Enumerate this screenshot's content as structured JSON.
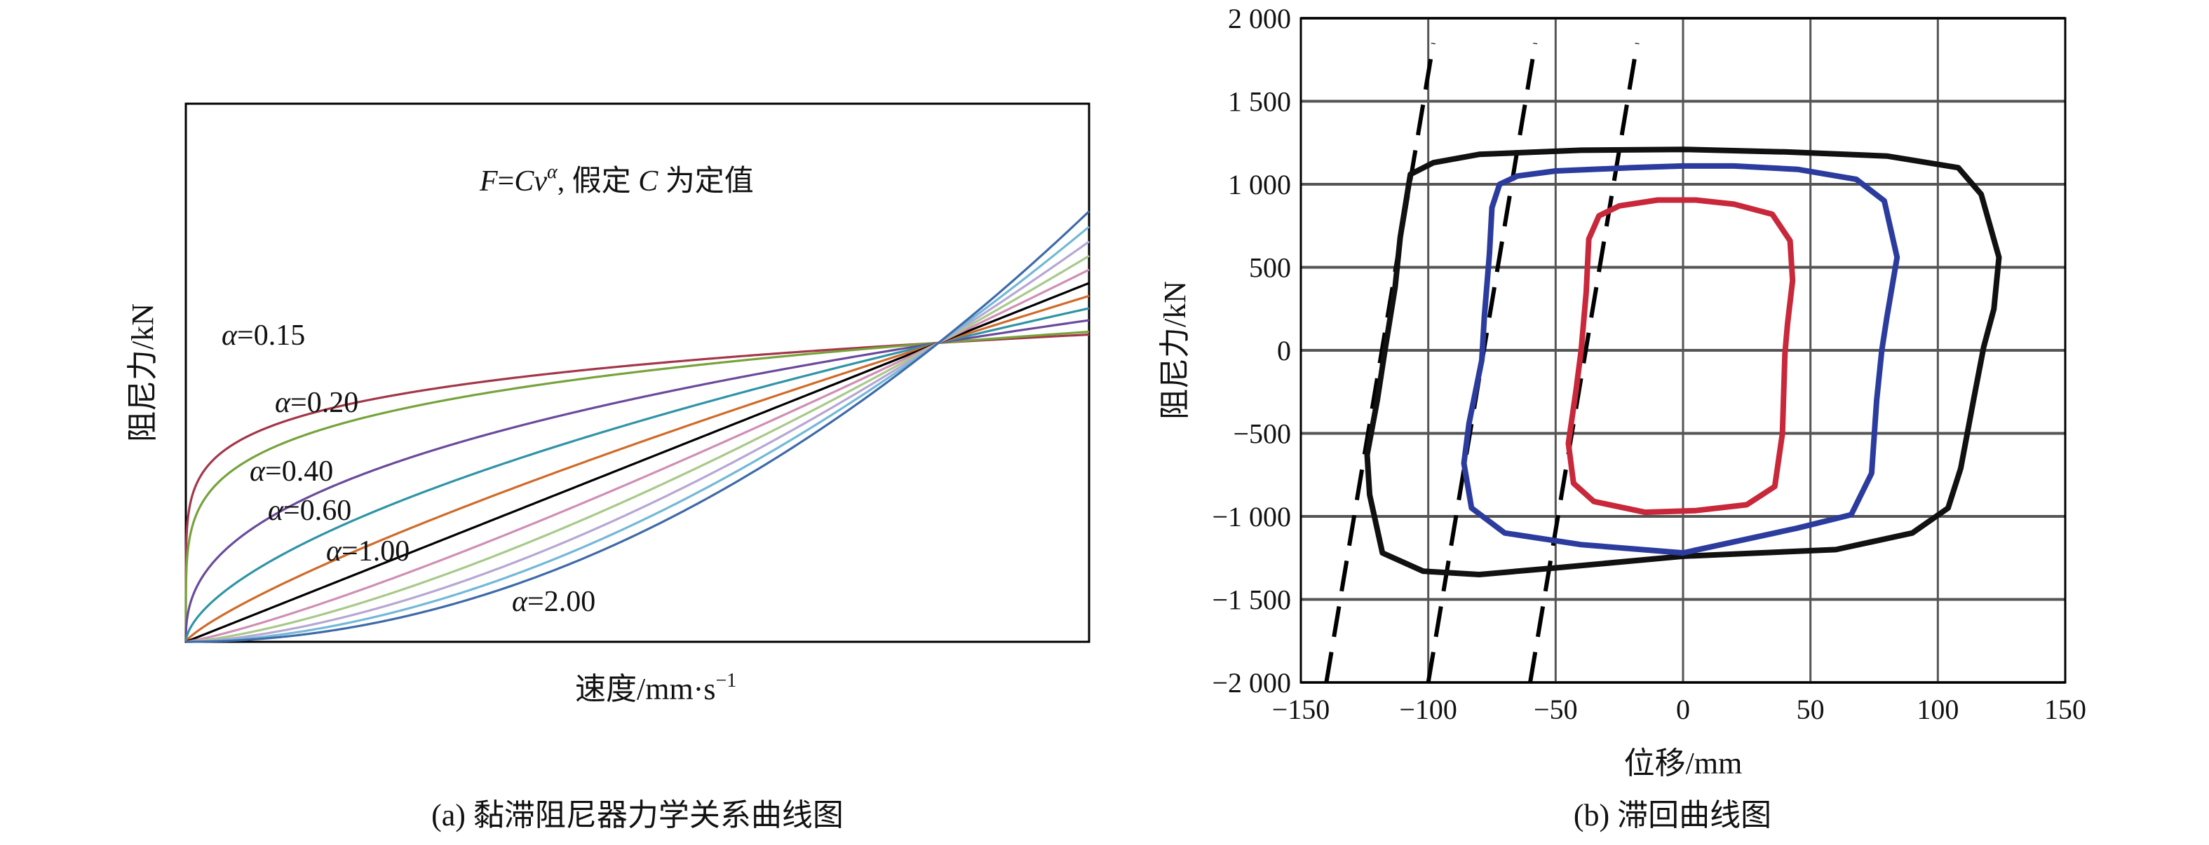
{
  "chart_data": [
    {
      "type": "line",
      "panel_label": "(a) 黏滞阻尼器力学关系曲线图",
      "annotation": "F=Cvα, 假定 C 为定值",
      "annotation_parts": {
        "F": "F",
        "eq": "=",
        "C": "C",
        "v": "v",
        "alpha_sup": "α",
        "rest1": ", 假定 ",
        "C2": "C",
        "rest2": " 为定值"
      },
      "xlabel": "速度/mm·s",
      "xlabel_sup": "−1",
      "ylabel": "阻尼力/kN",
      "xlim": [
        0,
        1.2
      ],
      "ylim": [
        0,
        1.8
      ],
      "grid": false,
      "formula": "y = x^alpha",
      "series": [
        {
          "name": "α=0.15",
          "alpha": 0.15,
          "color": "#a3374a",
          "label_text": "=0.15"
        },
        {
          "name": "α=0.20",
          "alpha": 0.2,
          "color": "#76a33c",
          "label_text": "=0.20"
        },
        {
          "name": "α=0.40",
          "alpha": 0.4,
          "color": "#6a4a9c",
          "label_text": "=0.40"
        },
        {
          "name": "α=0.60",
          "alpha": 0.6,
          "color": "#2f94a6",
          "label_text": "=0.60"
        },
        {
          "name": "",
          "alpha": 0.8,
          "color": "#d06b2a"
        },
        {
          "name": "α=1.00",
          "alpha": 1.0,
          "color": "#000000",
          "label_text": "=1.00"
        },
        {
          "name": "",
          "alpha": 1.2,
          "color": "#cf8fb4"
        },
        {
          "name": "",
          "alpha": 1.4,
          "color": "#a8c98a"
        },
        {
          "name": "",
          "alpha": 1.6,
          "color": "#b6a7d4"
        },
        {
          "name": "",
          "alpha": 1.8,
          "color": "#73b8d8"
        },
        {
          "name": "α=2.00",
          "alpha": 2.0,
          "color": "#3e6aa8",
          "label_text": "=2.00"
        }
      ],
      "alpha_symbol": "α"
    },
    {
      "type": "line",
      "panel_label": "(b) 滞回曲线图",
      "xlabel": "位移/mm",
      "ylabel": "阻尼力/kN",
      "xlim": [
        -150,
        150
      ],
      "ylim": [
        -2000,
        2000
      ],
      "xticks": [
        -150,
        -100,
        -50,
        0,
        50,
        100,
        150
      ],
      "xtick_labels": [
        "−150",
        "−100",
        "−50",
        "0",
        "50",
        "100",
        "150"
      ],
      "yticks": [
        2000,
        1500,
        1000,
        500,
        0,
        -500,
        -1000,
        -1500,
        -2000
      ],
      "ytick_labels": [
        "2 000",
        "1 500",
        "1 000",
        "500",
        "0",
        "−500",
        "−1 000",
        "−1 500",
        "−2 000"
      ],
      "grid": true,
      "loops": [
        {
          "color": "#111111",
          "points": [
            [
              -107,
              1060
            ],
            [
              -98,
              1130
            ],
            [
              -80,
              1180
            ],
            [
              -40,
              1205
            ],
            [
              0,
              1210
            ],
            [
              40,
              1195
            ],
            [
              80,
              1170
            ],
            [
              108,
              1100
            ],
            [
              117,
              940
            ],
            [
              124,
              560
            ],
            [
              122,
              250
            ],
            [
              118,
              20
            ],
            [
              114,
              -300
            ],
            [
              109,
              -710
            ],
            [
              104,
              -950
            ],
            [
              90,
              -1100
            ],
            [
              60,
              -1200
            ],
            [
              0,
              -1240
            ],
            [
              -50,
              -1310
            ],
            [
              -80,
              -1350
            ],
            [
              -102,
              -1330
            ],
            [
              -118,
              -1220
            ],
            [
              -123,
              -870
            ],
            [
              -124,
              -630
            ],
            [
              -120,
              -300
            ],
            [
              -117,
              0
            ],
            [
              -113,
              380
            ],
            [
              -111,
              680
            ]
          ]
        },
        {
          "color": "#2c3c9e",
          "points": [
            [
              -72,
              1000
            ],
            [
              -65,
              1050
            ],
            [
              -50,
              1080
            ],
            [
              -20,
              1100
            ],
            [
              0,
              1110
            ],
            [
              20,
              1110
            ],
            [
              45,
              1090
            ],
            [
              68,
              1030
            ],
            [
              79,
              900
            ],
            [
              84,
              560
            ],
            [
              80,
              200
            ],
            [
              78,
              0
            ],
            [
              76,
              -300
            ],
            [
              74,
              -740
            ],
            [
              66,
              -990
            ],
            [
              45,
              -1070
            ],
            [
              0,
              -1220
            ],
            [
              -40,
              -1170
            ],
            [
              -70,
              -1100
            ],
            [
              -83,
              -950
            ],
            [
              -86,
              -680
            ],
            [
              -84,
              -440
            ],
            [
              -79,
              -60
            ],
            [
              -78,
              200
            ],
            [
              -76,
              580
            ],
            [
              -75,
              860
            ]
          ]
        },
        {
          "color": "#c8283a",
          "points": [
            [
              -33,
              810
            ],
            [
              -25,
              870
            ],
            [
              -10,
              905
            ],
            [
              5,
              905
            ],
            [
              20,
              880
            ],
            [
              35,
              820
            ],
            [
              42,
              660
            ],
            [
              43,
              420
            ],
            [
              41,
              160
            ],
            [
              40,
              -20
            ],
            [
              39,
              -500
            ],
            [
              36,
              -820
            ],
            [
              25,
              -930
            ],
            [
              5,
              -965
            ],
            [
              -15,
              -975
            ],
            [
              -35,
              -910
            ],
            [
              -43,
              -800
            ],
            [
              -45,
              -560
            ],
            [
              -42,
              -240
            ],
            [
              -40,
              0
            ],
            [
              -38,
              350
            ],
            [
              -37,
              670
            ]
          ]
        }
      ],
      "dashed_lines": [
        {
          "from": [
            -140,
            -2000
          ],
          "to": [
            -98,
            1850
          ]
        },
        {
          "from": [
            -100,
            -2000
          ],
          "to": [
            -58,
            1850
          ]
        },
        {
          "from": [
            -60,
            -2000
          ],
          "to": [
            -18,
            1850
          ]
        }
      ]
    }
  ]
}
